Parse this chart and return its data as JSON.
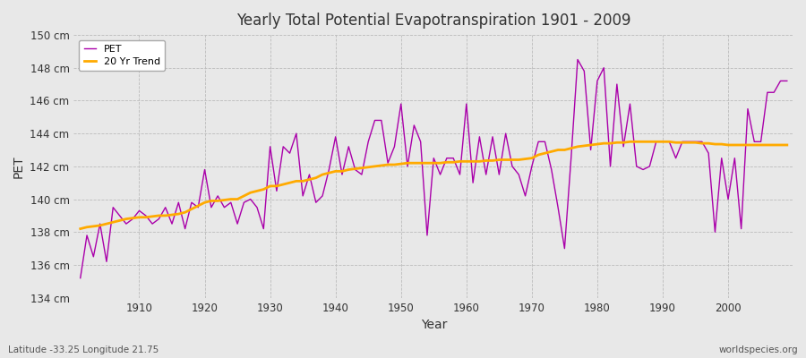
{
  "title": "Yearly Total Potential Evapotranspiration 1901 - 2009",
  "xlabel": "Year",
  "ylabel": "PET",
  "lat_lon_label": "Latitude -33.25 Longitude 21.75",
  "source_label": "worldspecies.org",
  "pet_color": "#aa00aa",
  "trend_color": "#ffaa00",
  "bg_color": "#e8e8e8",
  "plot_bg_color": "#e8e8e8",
  "ylim": [
    134,
    150
  ],
  "yticks": [
    134,
    136,
    138,
    140,
    142,
    144,
    146,
    148,
    150
  ],
  "years": [
    1901,
    1902,
    1903,
    1904,
    1905,
    1906,
    1907,
    1908,
    1909,
    1910,
    1911,
    1912,
    1913,
    1914,
    1915,
    1916,
    1917,
    1918,
    1919,
    1920,
    1921,
    1922,
    1923,
    1924,
    1925,
    1926,
    1927,
    1928,
    1929,
    1930,
    1931,
    1932,
    1933,
    1934,
    1935,
    1936,
    1937,
    1938,
    1939,
    1940,
    1941,
    1942,
    1943,
    1944,
    1945,
    1946,
    1947,
    1948,
    1949,
    1950,
    1951,
    1952,
    1953,
    1954,
    1955,
    1956,
    1957,
    1958,
    1959,
    1960,
    1961,
    1962,
    1963,
    1964,
    1965,
    1966,
    1967,
    1968,
    1969,
    1970,
    1971,
    1972,
    1973,
    1974,
    1975,
    1976,
    1977,
    1978,
    1979,
    1980,
    1981,
    1982,
    1983,
    1984,
    1985,
    1986,
    1987,
    1988,
    1989,
    1990,
    1991,
    1992,
    1993,
    1994,
    1995,
    1996,
    1997,
    1998,
    1999,
    2000,
    2001,
    2002,
    2003,
    2004,
    2005,
    2006,
    2007,
    2008,
    2009
  ],
  "pet_values": [
    135.2,
    137.8,
    136.5,
    138.5,
    136.2,
    139.5,
    139.0,
    138.5,
    138.8,
    139.3,
    139.0,
    138.5,
    138.8,
    139.5,
    138.5,
    139.8,
    138.2,
    139.8,
    139.5,
    141.8,
    139.5,
    140.2,
    139.5,
    139.8,
    138.5,
    139.8,
    140.0,
    139.5,
    138.2,
    143.2,
    140.5,
    143.2,
    142.8,
    144.0,
    140.2,
    141.5,
    139.8,
    140.2,
    141.8,
    143.8,
    141.5,
    143.2,
    141.8,
    141.5,
    143.5,
    144.8,
    144.8,
    142.2,
    143.2,
    145.8,
    142.0,
    144.5,
    143.5,
    137.8,
    142.5,
    141.5,
    142.5,
    142.5,
    141.5,
    145.8,
    141.0,
    143.8,
    141.5,
    143.8,
    141.5,
    144.0,
    142.0,
    141.5,
    140.2,
    142.0,
    143.5,
    143.5,
    141.8,
    139.5,
    137.0,
    142.5,
    148.5,
    147.8,
    143.0,
    147.2,
    148.0,
    142.0,
    147.0,
    143.2,
    145.8,
    142.0,
    141.8,
    142.0,
    143.5,
    143.5,
    143.5,
    142.5,
    143.5,
    143.5,
    143.5,
    143.5,
    142.8,
    138.0,
    142.5,
    140.0,
    142.5,
    138.2,
    145.5,
    143.5,
    143.5,
    146.5,
    146.5,
    147.2,
    147.2
  ],
  "trend_values": [
    138.2,
    138.3,
    138.35,
    138.4,
    138.5,
    138.6,
    138.7,
    138.8,
    138.85,
    138.9,
    138.9,
    138.95,
    139.0,
    139.0,
    139.05,
    139.1,
    139.2,
    139.4,
    139.6,
    139.8,
    139.9,
    139.9,
    139.95,
    140.0,
    140.0,
    140.2,
    140.4,
    140.5,
    140.6,
    140.8,
    140.8,
    140.9,
    141.0,
    141.1,
    141.1,
    141.2,
    141.3,
    141.5,
    141.6,
    141.7,
    141.7,
    141.8,
    141.85,
    141.9,
    141.95,
    142.0,
    142.05,
    142.1,
    142.1,
    142.15,
    142.2,
    142.2,
    142.2,
    142.2,
    142.2,
    142.2,
    142.25,
    142.25,
    142.3,
    142.3,
    142.3,
    142.3,
    142.35,
    142.35,
    142.4,
    142.4,
    142.4,
    142.4,
    142.45,
    142.5,
    142.7,
    142.8,
    142.9,
    143.0,
    143.0,
    143.1,
    143.2,
    143.25,
    143.3,
    143.35,
    143.4,
    143.4,
    143.45,
    143.45,
    143.5,
    143.5,
    143.5,
    143.5,
    143.5,
    143.5,
    143.5,
    143.45,
    143.45,
    143.45,
    143.45,
    143.4,
    143.4,
    143.35,
    143.35,
    143.3,
    143.3,
    143.3,
    143.3,
    143.3,
    143.3,
    143.3,
    143.3,
    143.3,
    143.3
  ]
}
